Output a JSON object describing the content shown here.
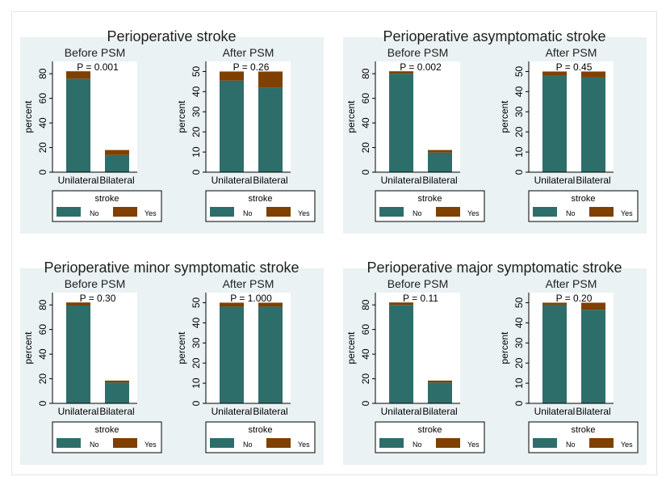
{
  "colors": {
    "no": "#2d6e6a",
    "yes": "#7f4000",
    "panel_bg": "#eaf2f3",
    "axis": "#000000"
  },
  "legend": {
    "title": "stroke",
    "no": "No",
    "yes": "Yes"
  },
  "chart_data": [
    {
      "title": "Perioperative stroke",
      "subplots": [
        {
          "type": "bar",
          "stacked": true,
          "subtitle": "Before PSM",
          "pvalue": "P = 0.001",
          "ylabel": "percent",
          "ylim": [
            0,
            90
          ],
          "yticks": [
            0,
            20,
            40,
            60,
            80
          ],
          "categories": [
            "Unilateral",
            "Bilateral"
          ],
          "series": [
            {
              "name": "No",
              "values": [
                76,
                14
              ]
            },
            {
              "name": "Yes",
              "values": [
                6,
                4
              ]
            }
          ]
        },
        {
          "type": "bar",
          "stacked": true,
          "subtitle": "After PSM",
          "pvalue": "P = 0.26",
          "ylabel": "percent",
          "ylim": [
            0,
            55
          ],
          "yticks": [
            0,
            10,
            20,
            30,
            40,
            50
          ],
          "categories": [
            "Unilateral",
            "Bilateral"
          ],
          "series": [
            {
              "name": "No",
              "values": [
                45.5,
                42
              ]
            },
            {
              "name": "Yes",
              "values": [
                4.5,
                8
              ]
            }
          ]
        }
      ]
    },
    {
      "title": "Perioperative asymptomatic stroke",
      "subplots": [
        {
          "type": "bar",
          "stacked": true,
          "subtitle": "Before PSM",
          "pvalue": "P = 0.002",
          "ylabel": "percent",
          "ylim": [
            0,
            90
          ],
          "yticks": [
            0,
            20,
            40,
            60,
            80
          ],
          "categories": [
            "Unilateral",
            "Bilateral"
          ],
          "series": [
            {
              "name": "No",
              "values": [
                80,
                16
              ]
            },
            {
              "name": "Yes",
              "values": [
                2,
                2
              ]
            }
          ]
        },
        {
          "type": "bar",
          "stacked": true,
          "subtitle": "After PSM",
          "pvalue": "P = 0.45",
          "ylabel": "percent",
          "ylim": [
            0,
            55
          ],
          "yticks": [
            0,
            10,
            20,
            30,
            40,
            50
          ],
          "categories": [
            "Unilateral",
            "Bilateral"
          ],
          "series": [
            {
              "name": "No",
              "values": [
                48,
                47
              ]
            },
            {
              "name": "Yes",
              "values": [
                2,
                3
              ]
            }
          ]
        }
      ]
    },
    {
      "title": "Perioperative minor symptomatic stroke",
      "subplots": [
        {
          "type": "bar",
          "stacked": true,
          "subtitle": "Before PSM",
          "pvalue": "P = 0.30",
          "ylabel": "percent",
          "ylim": [
            0,
            90
          ],
          "yticks": [
            0,
            20,
            40,
            60,
            80
          ],
          "categories": [
            "Unilateral",
            "Bilateral"
          ],
          "series": [
            {
              "name": "No",
              "values": [
                79.5,
                17
              ]
            },
            {
              "name": "Yes",
              "values": [
                2.5,
                1.5
              ]
            }
          ]
        },
        {
          "type": "bar",
          "stacked": true,
          "subtitle": "After PSM",
          "pvalue": "P = 1.000",
          "ylabel": "percent",
          "ylim": [
            0,
            55
          ],
          "yticks": [
            0,
            10,
            20,
            30,
            40,
            50
          ],
          "categories": [
            "Unilateral",
            "Bilateral"
          ],
          "series": [
            {
              "name": "No",
              "values": [
                48,
                48
              ]
            },
            {
              "name": "Yes",
              "values": [
                2,
                2
              ]
            }
          ]
        }
      ]
    },
    {
      "title": "Perioperative major symptomatic stroke",
      "subplots": [
        {
          "type": "bar",
          "stacked": true,
          "subtitle": "Before PSM",
          "pvalue": "P = 0.11",
          "ylabel": "percent",
          "ylim": [
            0,
            90
          ],
          "yticks": [
            0,
            20,
            40,
            60,
            80
          ],
          "categories": [
            "Unilateral",
            "Bilateral"
          ],
          "series": [
            {
              "name": "No",
              "values": [
                80,
                17
              ]
            },
            {
              "name": "Yes",
              "values": [
                2,
                1.5
              ]
            }
          ]
        },
        {
          "type": "bar",
          "stacked": true,
          "subtitle": "After PSM",
          "pvalue": "P = 0.20",
          "ylabel": "percent",
          "ylim": [
            0,
            55
          ],
          "yticks": [
            0,
            10,
            20,
            30,
            40,
            50
          ],
          "categories": [
            "Unilateral",
            "Bilateral"
          ],
          "series": [
            {
              "name": "No",
              "values": [
                49,
                46.5
              ]
            },
            {
              "name": "Yes",
              "values": [
                1,
                3.5
              ]
            }
          ]
        }
      ]
    }
  ]
}
